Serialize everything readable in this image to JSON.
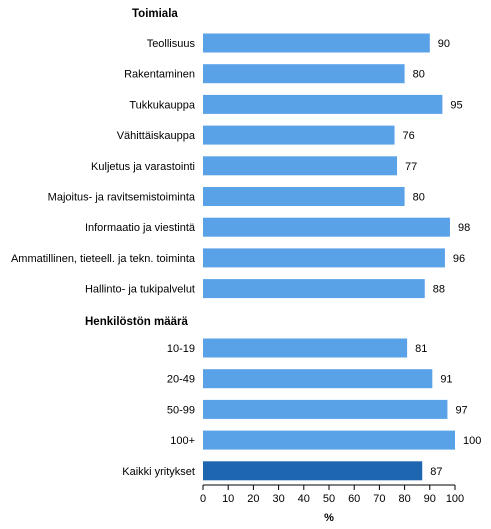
{
  "chart_data": {
    "type": "bar",
    "orientation": "horizontal",
    "xlabel": "%",
    "xlim": [
      0,
      100
    ],
    "xticks": [
      0,
      10,
      20,
      30,
      40,
      50,
      60,
      70,
      80,
      90,
      100
    ],
    "grid": false,
    "legend": "none",
    "groups": [
      {
        "heading": "Toimiala",
        "categories": [
          "Teollisuus",
          "Rakentaminen",
          "Tukkukauppa",
          "Vähittäiskauppa",
          "Kuljetus ja varastointi",
          "Majoitus- ja ravitsemistoiminta",
          "Informaatio ja viestintä",
          "Ammatillinen, tieteell. ja tekn. toiminta",
          "Hallinto- ja tukipalvelut"
        ],
        "values": [
          90,
          80,
          95,
          76,
          77,
          80,
          98,
          96,
          88
        ]
      },
      {
        "heading": "Henkilöstön määrä",
        "categories": [
          "10-19",
          "20-49",
          "50-99",
          "100+",
          "Kaikki yritykset"
        ],
        "values": [
          81,
          91,
          97,
          100,
          87
        ]
      }
    ],
    "highlight_category": "Kaikki yritykset",
    "colors": {
      "bar": "#5aa2e8",
      "highlight_bar": "#1f66b0",
      "text": "#000000",
      "axis": "#000000"
    }
  }
}
